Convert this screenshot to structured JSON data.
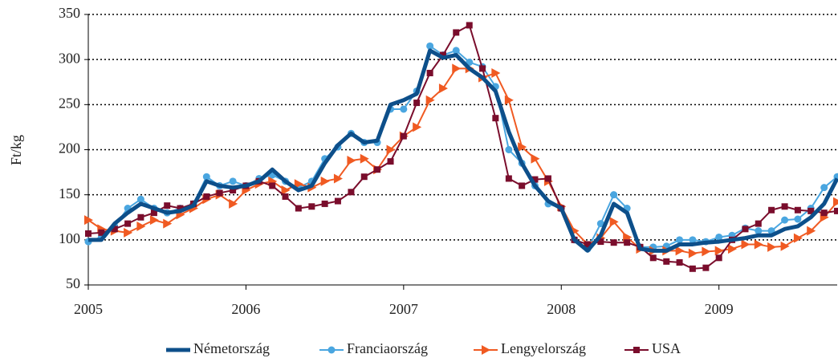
{
  "chart_data": {
    "type": "line",
    "ylabel": "Ft/kg",
    "x": [
      2005.0,
      2005.083,
      2005.167,
      2005.25,
      2005.333,
      2005.417,
      2005.5,
      2005.583,
      2005.667,
      2005.75,
      2005.833,
      2005.917,
      2006.0,
      2006.083,
      2006.167,
      2006.25,
      2006.333,
      2006.417,
      2006.5,
      2006.583,
      2006.667,
      2006.75,
      2006.833,
      2006.917,
      2007.0,
      2007.083,
      2007.167,
      2007.25,
      2007.333,
      2007.417,
      2007.5,
      2007.583,
      2007.667,
      2007.75,
      2007.833,
      2007.917,
      2008.0,
      2008.083,
      2008.167,
      2008.25,
      2008.333,
      2008.417,
      2008.5,
      2008.583,
      2008.667,
      2008.75,
      2008.833,
      2008.917,
      2009.0,
      2009.083,
      2009.167,
      2009.25,
      2009.333,
      2009.417,
      2009.5,
      2009.583,
      2009.667,
      2009.75
    ],
    "series": [
      {
        "name": "Németország",
        "color": "#0d4f8a",
        "marker": "none",
        "values": [
          100,
          100,
          118,
          130,
          140,
          135,
          130,
          132,
          138,
          165,
          160,
          158,
          160,
          165,
          178,
          165,
          155,
          160,
          185,
          205,
          218,
          208,
          210,
          250,
          255,
          262,
          310,
          302,
          305,
          290,
          280,
          265,
          220,
          185,
          160,
          143,
          135,
          100,
          88,
          105,
          140,
          130,
          90,
          88,
          88,
          95,
          95,
          97,
          98,
          100,
          102,
          105,
          105,
          112,
          115,
          125,
          140,
          168
        ]
      },
      {
        "name": "Franciaország",
        "color": "#4aa6e0",
        "marker": "circle",
        "values": [
          98,
          103,
          115,
          135,
          145,
          135,
          130,
          135,
          140,
          170,
          160,
          165,
          160,
          168,
          172,
          165,
          158,
          165,
          190,
          203,
          218,
          208,
          208,
          245,
          245,
          265,
          315,
          305,
          310,
          297,
          292,
          270,
          200,
          185,
          160,
          140,
          135,
          100,
          90,
          118,
          150,
          135,
          92,
          92,
          93,
          100,
          100,
          98,
          103,
          105,
          113,
          110,
          110,
          122,
          123,
          135,
          158,
          170
        ]
      },
      {
        "name": "Lengyelország",
        "color": "#f05a22",
        "marker": "triangle",
        "values": [
          122,
          112,
          110,
          108,
          115,
          122,
          118,
          128,
          135,
          145,
          150,
          140,
          155,
          162,
          165,
          155,
          162,
          158,
          165,
          168,
          188,
          190,
          178,
          200,
          215,
          225,
          255,
          268,
          290,
          290,
          280,
          285,
          255,
          203,
          190,
          165,
          137,
          110,
          95,
          102,
          120,
          103,
          90,
          88,
          88,
          88,
          85,
          87,
          88,
          90,
          95,
          95,
          92,
          93,
          102,
          110,
          125,
          142
        ]
      },
      {
        "name": "USA",
        "color": "#7a0d2c",
        "marker": "square",
        "values": [
          107,
          108,
          112,
          118,
          125,
          130,
          138,
          135,
          140,
          148,
          152,
          155,
          160,
          165,
          160,
          148,
          135,
          137,
          140,
          143,
          153,
          170,
          178,
          187,
          215,
          252,
          285,
          305,
          330,
          338,
          290,
          235,
          168,
          160,
          167,
          168,
          135,
          100,
          95,
          98,
          97,
          97,
          92,
          80,
          76,
          75,
          68,
          69,
          80,
          100,
          112,
          118,
          133,
          137,
          133,
          132,
          130,
          132
        ]
      }
    ],
    "xlim": [
      2005,
      2009.75
    ],
    "xticks": [
      2005,
      2006,
      2007,
      2008,
      2009
    ],
    "ylim": [
      50,
      350
    ],
    "yticks": [
      50,
      100,
      150,
      200,
      250,
      300,
      350
    ],
    "grid": true,
    "legend": "bottom"
  }
}
